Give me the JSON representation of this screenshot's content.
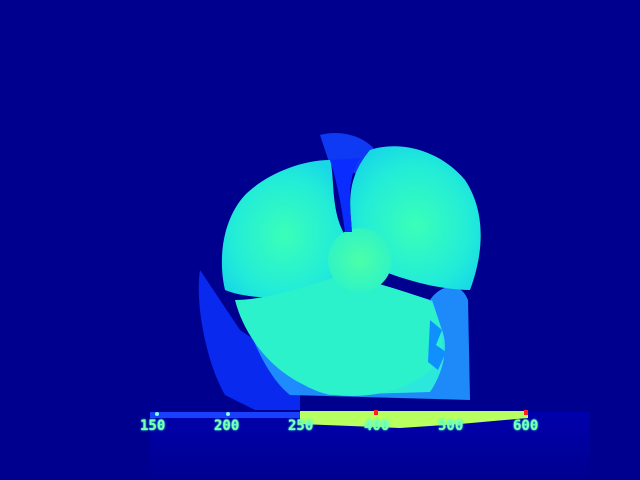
{
  "image": {
    "kind": "depth-map colorized (jet colormap) of an electric fan",
    "palette": {
      "far": "#00008f",
      "mid": "#0018ff",
      "near": "#2cf0d0",
      "nearest": "#b8ff60",
      "marker": "#ff2020"
    }
  },
  "scale_bar": {
    "ticks": [
      {
        "label": "150"
      },
      {
        "label": "200"
      },
      {
        "label": "250"
      },
      {
        "label": "400"
      },
      {
        "label": "500"
      },
      {
        "label": "600"
      }
    ]
  }
}
